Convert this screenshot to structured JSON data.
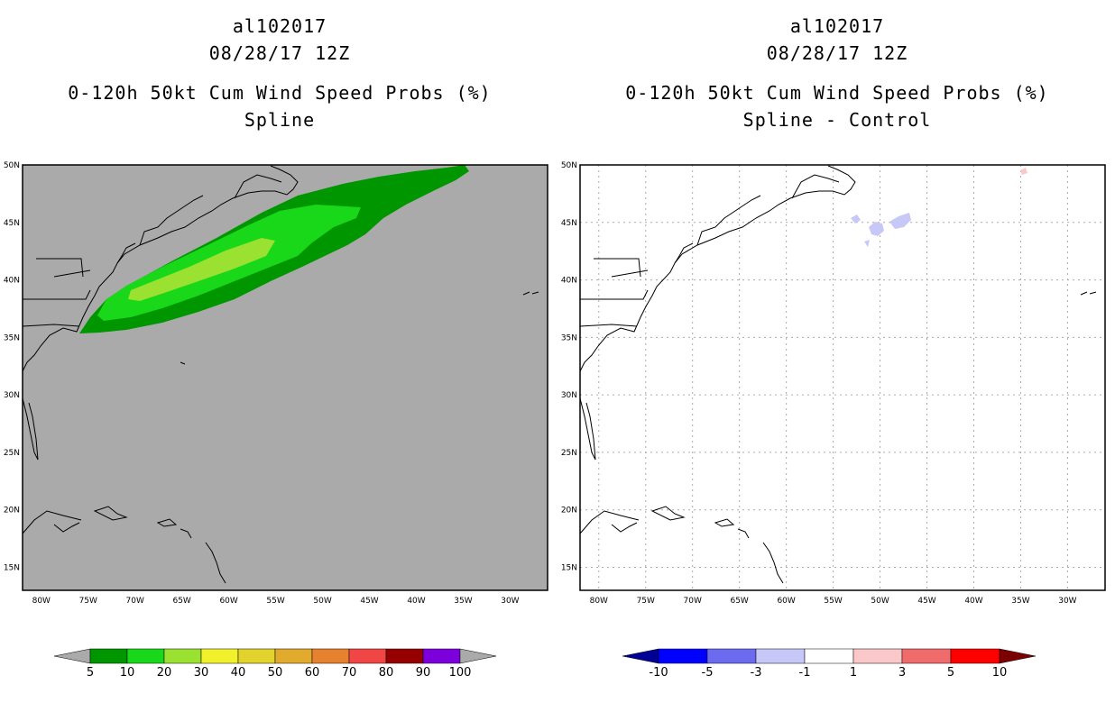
{
  "panels": {
    "left": {
      "storm_id": "al102017",
      "datetime": "08/28/17 12Z",
      "product": "0-120h 50kt Cum Wind Speed Probs (%)",
      "subtitle": "Spline"
    },
    "right": {
      "storm_id": "al102017",
      "datetime": "08/28/17 12Z",
      "product": "0-120h 50kt Cum Wind Speed Probs (%)",
      "subtitle": "Spline - Control"
    }
  },
  "map": {
    "lat_labels": [
      "50N",
      "45N",
      "40N",
      "35N",
      "30N",
      "25N",
      "20N",
      "15N"
    ],
    "lon_labels": [
      "80W",
      "75W",
      "70W",
      "65W",
      "60W",
      "55W",
      "50W",
      "45W",
      "40W",
      "35W",
      "30W"
    ],
    "lat_range": [
      13,
      50
    ],
    "lon_range": [
      -82,
      -26
    ]
  },
  "colorbar_left": {
    "labels": [
      "5",
      "10",
      "20",
      "30",
      "40",
      "50",
      "60",
      "70",
      "80",
      "90",
      "100"
    ],
    "colors": [
      "#009600",
      "#19d719",
      "#9be132",
      "#f0f02d",
      "#e1d22d",
      "#e1aa2d",
      "#e6822d",
      "#f04646",
      "#960000",
      "#7d00dc"
    ],
    "below_color": "#aaaaaa",
    "above_color": "#aaaaaa"
  },
  "colorbar_right": {
    "labels": [
      "-10",
      "-5",
      "-3",
      "-1",
      "1",
      "3",
      "5",
      "10"
    ],
    "colors": [
      "#0000ff",
      "#6b6bf0",
      "#c8c8f8",
      "#ffffff",
      "#fac8c8",
      "#f06b6b",
      "#ff0000"
    ],
    "below_color": "#000096",
    "above_color": "#7d0000"
  },
  "colors": {
    "ocean_gray": "#aaaaaa",
    "prob_10": "#009600",
    "prob_20": "#19d719",
    "prob_30": "#9be132",
    "diff_neg": "#c8c8f8",
    "diff_pos": "#fac8c8"
  }
}
